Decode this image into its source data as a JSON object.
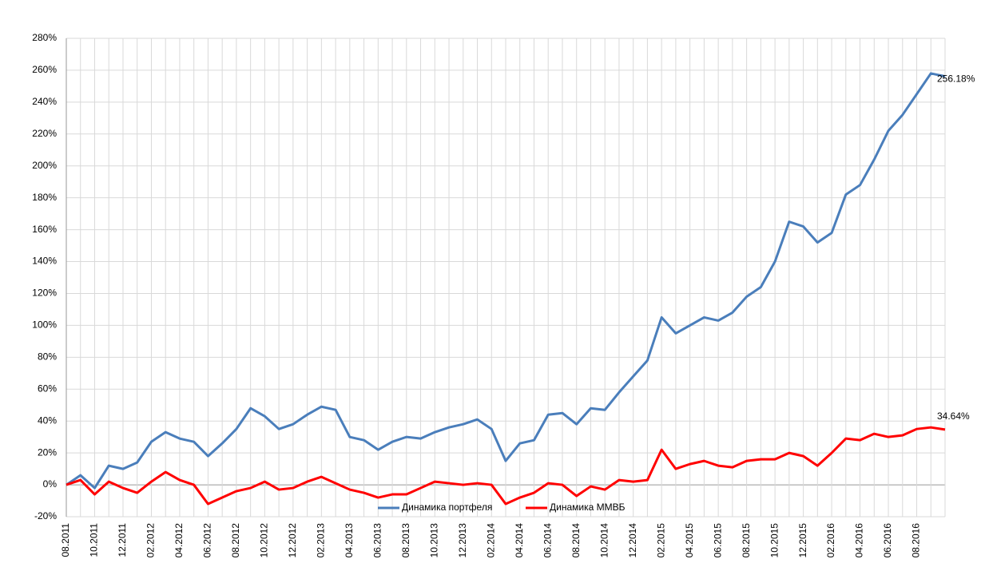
{
  "chart_data": {
    "type": "line",
    "categories": [
      "08.2011",
      null,
      "10.2011",
      null,
      "12.2011",
      null,
      "02.2012",
      null,
      "04.2012",
      null,
      "06.2012",
      null,
      "08.2012",
      null,
      "10.2012",
      null,
      "12.2012",
      null,
      "02.2013",
      null,
      "04.2013",
      null,
      "06.2013",
      null,
      "08.2013",
      null,
      "10.2013",
      null,
      "12.2013",
      null,
      "02.2014",
      null,
      "04.2014",
      null,
      "06.2014",
      null,
      "08.2014",
      null,
      "10.2014",
      null,
      "12.2014",
      null,
      "02.2015",
      null,
      "04.2015",
      null,
      "06.2015",
      null,
      "08.2015",
      null,
      "10.2015",
      null,
      "12.2015",
      null,
      "02.2016",
      null,
      "04.2016",
      null,
      "06.2016",
      null,
      "08.2016",
      null,
      null
    ],
    "series": [
      {
        "name": "Динамика портфеля",
        "color": "#4a7ebb",
        "values": [
          0,
          6,
          -2,
          12,
          10,
          14,
          27,
          33,
          29,
          27,
          18,
          26,
          35,
          48,
          43,
          35,
          38,
          44,
          49,
          47,
          30,
          28,
          22,
          27,
          30,
          29,
          33,
          36,
          38,
          41,
          35,
          15,
          26,
          28,
          44,
          45,
          38,
          48,
          47,
          58,
          68,
          78,
          105,
          95,
          100,
          105,
          103,
          108,
          118,
          124,
          140,
          165,
          162,
          152,
          158,
          182,
          188,
          204,
          222,
          232,
          245,
          258,
          256.18
        ],
        "value_labels": [
          null,
          null,
          null,
          null,
          null,
          null,
          null,
          null,
          null,
          null,
          null,
          null,
          null,
          null,
          null,
          null,
          null,
          null,
          null,
          null,
          null,
          null,
          null,
          null,
          null,
          null,
          null,
          null,
          null,
          null,
          null,
          null,
          null,
          null,
          null,
          null,
          null,
          null,
          null,
          null,
          null,
          null,
          null,
          null,
          null,
          null,
          null,
          null,
          null,
          null,
          null,
          null,
          null,
          null,
          null,
          null,
          null,
          null,
          null,
          null,
          null,
          null,
          "256.18%"
        ]
      },
      {
        "name": "Динамика ММВБ",
        "color": "#ff0000",
        "values": [
          0,
          3,
          -6,
          2,
          -2,
          -5,
          2,
          8,
          3,
          0,
          -12,
          -8,
          -4,
          -2,
          2,
          -3,
          -2,
          2,
          5,
          1,
          -3,
          -5,
          -8,
          -6,
          -6,
          -2,
          2,
          1,
          0,
          1,
          0,
          -12,
          -8,
          -5,
          1,
          0,
          -7,
          -1,
          -3,
          3,
          2,
          3,
          22,
          10,
          13,
          15,
          12,
          11,
          15,
          16,
          16,
          20,
          18,
          12,
          20,
          29,
          28,
          32,
          30,
          31,
          35,
          36,
          34.64
        ],
        "value_labels": [
          null,
          null,
          null,
          null,
          null,
          null,
          null,
          null,
          null,
          null,
          null,
          null,
          null,
          null,
          null,
          null,
          null,
          null,
          null,
          null,
          null,
          null,
          null,
          null,
          null,
          null,
          null,
          null,
          null,
          null,
          null,
          null,
          null,
          null,
          null,
          null,
          null,
          null,
          null,
          null,
          null,
          null,
          null,
          null,
          null,
          null,
          null,
          null,
          null,
          null,
          null,
          null,
          null,
          null,
          null,
          null,
          null,
          null,
          null,
          null,
          null,
          null,
          "34.64%"
        ]
      }
    ],
    "ylim": [
      -20,
      280
    ],
    "yticks": [
      {
        "value": -20,
        "label": "-20%"
      },
      {
        "value": 0,
        "label": "0%"
      },
      {
        "value": 20,
        "label": "20%"
      },
      {
        "value": 40,
        "label": "40%"
      },
      {
        "value": 60,
        "label": "60%"
      },
      {
        "value": 80,
        "label": "80%"
      },
      {
        "value": 100,
        "label": "100%"
      },
      {
        "value": 120,
        "label": "120%"
      },
      {
        "value": 140,
        "label": "140%"
      },
      {
        "value": 160,
        "label": "160%"
      },
      {
        "value": 180,
        "label": "180%"
      },
      {
        "value": 200,
        "label": "200%"
      },
      {
        "value": 220,
        "label": "220%"
      },
      {
        "value": 240,
        "label": "240%"
      },
      {
        "value": 260,
        "label": "260%"
      },
      {
        "value": 280,
        "label": "280%"
      }
    ],
    "grid": true,
    "legend": "bottom"
  }
}
